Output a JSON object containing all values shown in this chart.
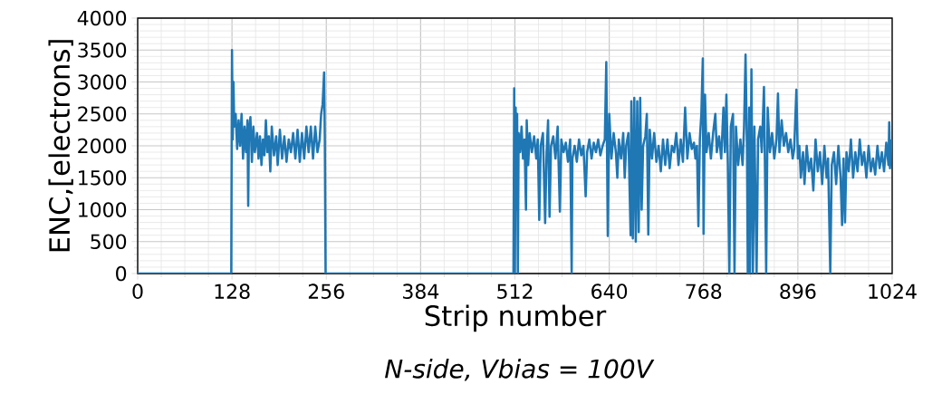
{
  "chart_data": {
    "type": "line",
    "xlabel": "Strip number",
    "ylabel": "ENC,[electrons]",
    "annotations": [
      "*N-side, Vbias = 100V*"
    ],
    "xlim": [
      0,
      1024
    ],
    "ylim": [
      0,
      4000
    ],
    "xticks": [
      0,
      128,
      256,
      384,
      512,
      640,
      768,
      896,
      1024
    ],
    "yticks": [
      0,
      500,
      1000,
      1500,
      2000,
      2500,
      3000,
      3500,
      4000
    ],
    "grid": true,
    "marker": "none",
    "line_style": "solid",
    "series": [
      {
        "color": "#1f77b4",
        "x": [
          0,
          127,
          128,
          129,
          130,
          131,
          133,
          135,
          137,
          139,
          141,
          143,
          145,
          147,
          149,
          150,
          151,
          153,
          155,
          157,
          159,
          162,
          164,
          166,
          168,
          170,
          172,
          174,
          176,
          178,
          180,
          182,
          185,
          188,
          190,
          193,
          196,
          199,
          202,
          205,
          208,
          211,
          214,
          217,
          220,
          223,
          226,
          229,
          232,
          235,
          238,
          241,
          244,
          247,
          249,
          251,
          253,
          254,
          255,
          510,
          511,
          512,
          513,
          514,
          515,
          516,
          517,
          519,
          521,
          523,
          525,
          527,
          528,
          530,
          532,
          535,
          538,
          541,
          543,
          545,
          547,
          550,
          553,
          555,
          557,
          559,
          561,
          564,
          567,
          570,
          573,
          575,
          578,
          581,
          584,
          587,
          589,
          590,
          593,
          596,
          599,
          602,
          605,
          608,
          610,
          613,
          616,
          619,
          622,
          625,
          628,
          631,
          634,
          636,
          638,
          640,
          643,
          646,
          649,
          651,
          653,
          656,
          659,
          661,
          663,
          666,
          669,
          670,
          672,
          674,
          676,
          678,
          680,
          682,
          684,
          686,
          689,
          691,
          693,
          695,
          698,
          701,
          704,
          707,
          710,
          713,
          716,
          719,
          722,
          725,
          728,
          731,
          734,
          737,
          740,
          743,
          746,
          749,
          752,
          755,
          757,
          759,
          761,
          763,
          765,
          767,
          768,
          770,
          772,
          775,
          778,
          781,
          784,
          786,
          789,
          792,
          795,
          797,
          799,
          801,
          803,
          805,
          808,
          810,
          812,
          815,
          818,
          821,
          823,
          825,
          827,
          828,
          830,
          831,
          833,
          835,
          837,
          840,
          842,
          845,
          847,
          850,
          851,
          853,
          855,
          858,
          861,
          864,
          867,
          869,
          871,
          874,
          877,
          880,
          883,
          886,
          889,
          891,
          894,
          896,
          898,
          900,
          903,
          905,
          908,
          911,
          914,
          917,
          920,
          923,
          926,
          929,
          932,
          935,
          937,
          940,
          942,
          945,
          948,
          951,
          954,
          956,
          958,
          960,
          962,
          965,
          968,
          971,
          974,
          977,
          980,
          983,
          986,
          989,
          992,
          995,
          998,
          1001,
          1004,
          1007,
          1010,
          1013,
          1016,
          1019,
          1020,
          1021,
          1023
        ],
        "values": [
          0,
          0,
          3500,
          2100,
          3000,
          2300,
          2500,
          1950,
          2400,
          2000,
          2500,
          1800,
          2300,
          1900,
          2400,
          1060,
          2200,
          2450,
          1750,
          2300,
          1900,
          2200,
          1800,
          2150,
          1700,
          2100,
          1850,
          2400,
          1900,
          2150,
          1600,
          2300,
          1850,
          2150,
          1700,
          2250,
          1800,
          2150,
          1750,
          2100,
          1900,
          2200,
          1800,
          2250,
          1750,
          2200,
          1800,
          2300,
          1900,
          2300,
          1800,
          2300,
          1900,
          2100,
          2500,
          2650,
          3150,
          2100,
          0,
          0,
          2900,
          0,
          2600,
          1000,
          2500,
          0,
          2200,
          1900,
          2300,
          1800,
          2100,
          1000,
          2400,
          1700,
          2200,
          1900,
          2150,
          1800,
          2100,
          840,
          2000,
          2200,
          790,
          1900,
          2400,
          890,
          2000,
          2150,
          1800,
          2300,
          970,
          2100,
          1900,
          2050,
          1750,
          2100,
          0,
          1800,
          2000,
          1750,
          2100,
          1850,
          2000,
          1210,
          1900,
          2100,
          1800,
          2050,
          1900,
          2100,
          1850,
          2000,
          2100,
          3310,
          590,
          2500,
          1800,
          2200,
          1900,
          1500,
          2100,
          1800,
          2200,
          1500,
          2000,
          2200,
          600,
          2700,
          550,
          2750,
          500,
          2700,
          650,
          2750,
          1000,
          2000,
          2150,
          2500,
          610,
          2250,
          1800,
          2200,
          1750,
          2000,
          1600,
          2100,
          1700,
          2100,
          1650,
          2000,
          1900,
          2200,
          1700,
          2100,
          1750,
          2600,
          1800,
          2200,
          1950,
          2050,
          1800,
          2000,
          740,
          2100,
          2500,
          3370,
          620,
          2800,
          1900,
          2200,
          1800,
          2200,
          2500,
          1900,
          2150,
          1800,
          2600,
          1900,
          2800,
          1700,
          0,
          2300,
          2500,
          0,
          2300,
          1700,
          2100,
          1700,
          2300,
          3430,
          1900,
          0,
          2600,
          0,
          3200,
          0,
          2300,
          0,
          2100,
          2300,
          1900,
          2920,
          2000,
          0,
          2600,
          1900,
          2200,
          1800,
          2100,
          2820,
          1900,
          2400,
          2000,
          2200,
          1900,
          2100,
          1800,
          1950,
          2880,
          1800,
          2000,
          1500,
          1900,
          1400,
          2000,
          1600,
          1800,
          1300,
          2100,
          1600,
          1900,
          1400,
          2000,
          1500,
          1800,
          0,
          1700,
          1900,
          1400,
          2000,
          1500,
          760,
          1800,
          800,
          1900,
          1600,
          2100,
          1500,
          1900,
          1600,
          2100,
          1700,
          1900,
          1500,
          2000,
          1600,
          1800,
          1550,
          2000,
          1650,
          1900,
          1600,
          2050,
          1700,
          2370,
          1650,
          2100
        ]
      }
    ]
  }
}
